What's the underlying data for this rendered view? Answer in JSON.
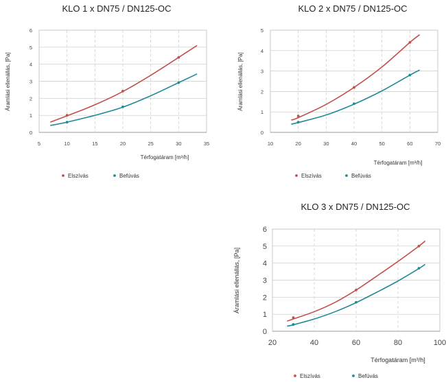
{
  "chart_data": [
    {
      "type": "line",
      "title": "KLO 1 x DN75 / DN125-OC",
      "xlabel": "Térfogatáram [m³/h]",
      "ylabel": "Áramlási ellenállás, [Pa]",
      "xlim": [
        5,
        35
      ],
      "ylim": [
        0,
        6
      ],
      "xticks": [
        "5",
        "10",
        "15",
        "20",
        "25",
        "30",
        "35"
      ],
      "yticks": [
        "0",
        "1",
        "2",
        "3",
        "4",
        "5",
        "6"
      ],
      "grid": true,
      "legend_position": "bottom",
      "series": [
        {
          "name": "Elszívás",
          "color": "#c0504d",
          "x": [
            7,
            10,
            15,
            20,
            25,
            30,
            33.3
          ],
          "y": [
            0.6,
            0.97,
            1.62,
            2.4,
            3.35,
            4.4,
            5.1
          ],
          "markers": [
            [
              10,
              1.0
            ],
            [
              20,
              2.42
            ],
            [
              30,
              4.4
            ]
          ]
        },
        {
          "name": "Befúvás",
          "color": "#1f8a96",
          "x": [
            7,
            10,
            15,
            20,
            25,
            30,
            33.3
          ],
          "y": [
            0.4,
            0.6,
            1.0,
            1.48,
            2.15,
            2.92,
            3.43
          ],
          "markers": [
            [
              10,
              0.6
            ],
            [
              20,
              1.5
            ],
            [
              30,
              2.92
            ]
          ]
        }
      ]
    },
    {
      "type": "line",
      "title": "KLO 2 x DN75 / DN125-OC",
      "xlabel": "Térfogatáram [m³/h]",
      "ylabel": "Áramlási ellenállás, [Pa]",
      "xlim": [
        10,
        70
      ],
      "ylim": [
        0,
        5
      ],
      "xticks": [
        "10",
        "20",
        "30",
        "40",
        "50",
        "60",
        "70"
      ],
      "yticks": [
        "0",
        "1",
        "2",
        "3",
        "4",
        "5"
      ],
      "grid": true,
      "legend_position": "bottom",
      "series": [
        {
          "name": "Elszívás",
          "color": "#c0504d",
          "x": [
            17.5,
            20,
            30,
            40,
            50,
            60,
            63.5
          ],
          "y": [
            0.6,
            0.72,
            1.37,
            2.2,
            3.2,
            4.4,
            4.78
          ],
          "markers": [
            [
              20,
              0.8
            ],
            [
              40,
              2.2
            ],
            [
              60,
              4.4
            ]
          ]
        },
        {
          "name": "Befúvás",
          "color": "#1f8a96",
          "x": [
            17.5,
            20,
            30,
            40,
            50,
            60,
            63.5
          ],
          "y": [
            0.4,
            0.48,
            0.85,
            1.38,
            2.03,
            2.8,
            3.05
          ],
          "markers": [
            [
              20,
              0.5
            ],
            [
              40,
              1.4
            ],
            [
              60,
              2.8
            ]
          ]
        }
      ]
    },
    {
      "type": "line",
      "title": "KLO 3 x DN75 / DN125-OC",
      "xlabel": "Térfogatáram [m³/h]",
      "ylabel": "Áramlási ellenállás, [Pa]",
      "xlim": [
        20,
        100
      ],
      "ylim": [
        0,
        6
      ],
      "xticks": [
        "20",
        "40",
        "60",
        "80",
        "100"
      ],
      "yticks": [
        "0",
        "1",
        "2",
        "3",
        "4",
        "5",
        "6"
      ],
      "grid": true,
      "legend_position": "bottom",
      "series": [
        {
          "name": "Elszívás",
          "color": "#c0504d",
          "x": [
            27,
            30,
            40,
            50,
            60,
            70,
            80,
            90,
            93
          ],
          "y": [
            0.6,
            0.72,
            1.15,
            1.7,
            2.42,
            3.25,
            4.1,
            5.0,
            5.3
          ],
          "markers": [
            [
              30,
              0.8
            ],
            [
              60,
              2.42
            ],
            [
              90,
              5.0
            ]
          ]
        },
        {
          "name": "Befúvás",
          "color": "#1f8a96",
          "x": [
            27,
            30,
            40,
            50,
            60,
            70,
            80,
            90,
            93
          ],
          "y": [
            0.3,
            0.38,
            0.72,
            1.15,
            1.68,
            2.3,
            2.95,
            3.68,
            3.93
          ],
          "markers": [
            [
              30,
              0.4
            ],
            [
              60,
              1.7
            ],
            [
              90,
              3.7
            ]
          ]
        }
      ]
    }
  ]
}
